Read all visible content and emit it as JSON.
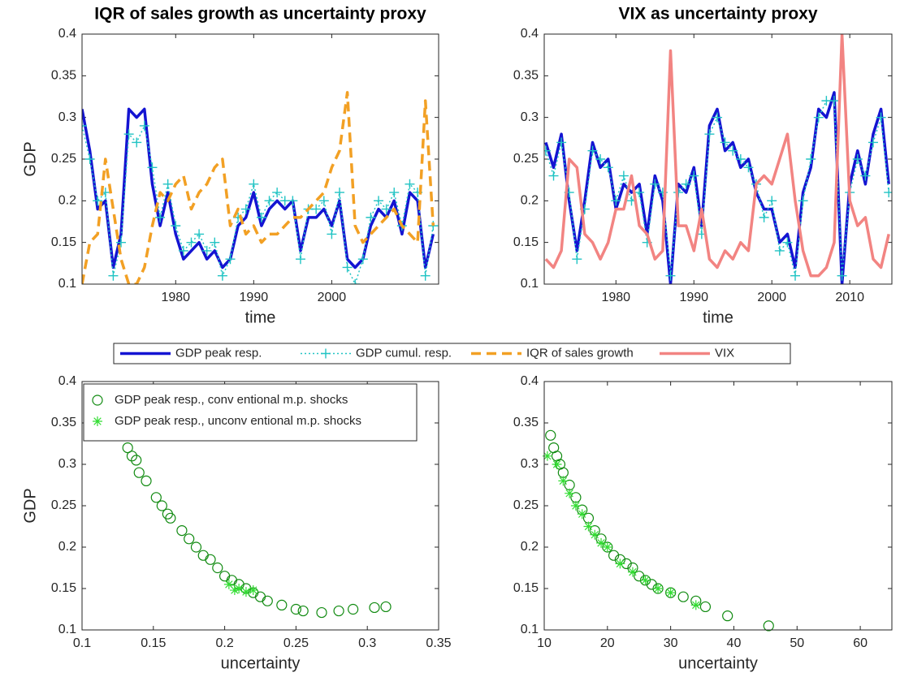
{
  "chart_data": [
    {
      "type": "line",
      "title": "IQR of sales growth  as uncertainty proxy",
      "xlabel": "time",
      "ylabel": "GDP",
      "x": [
        1968,
        1969,
        1970,
        1971,
        1972,
        1973,
        1974,
        1975,
        1976,
        1977,
        1978,
        1979,
        1980,
        1981,
        1982,
        1983,
        1984,
        1985,
        1986,
        1987,
        1988,
        1989,
        1990,
        1991,
        1992,
        1993,
        1994,
        1995,
        1996,
        1997,
        1998,
        1999,
        2000,
        2001,
        2002,
        2003,
        2004,
        2005,
        2006,
        2007,
        2008,
        2009,
        2010,
        2011,
        2012,
        2013
      ],
      "xlim": [
        1968,
        2013.7
      ],
      "xticks": [
        1980,
        1990,
        2000
      ],
      "ylim": [
        0.1,
        0.4
      ],
      "yticks": [
        0.1,
        0.15,
        0.2,
        0.25,
        0.3,
        0.35,
        0.4
      ],
      "series": [
        {
          "name": "GDP peak resp.",
          "color": "#1414d2",
          "style": "solid",
          "width": 3.5,
          "values": [
            0.31,
            0.26,
            0.19,
            0.2,
            0.12,
            0.16,
            0.31,
            0.3,
            0.31,
            0.22,
            0.17,
            0.21,
            0.16,
            0.13,
            0.14,
            0.15,
            0.13,
            0.14,
            0.12,
            0.13,
            0.17,
            0.18,
            0.21,
            0.17,
            0.19,
            0.2,
            0.19,
            0.2,
            0.14,
            0.18,
            0.18,
            0.19,
            0.17,
            0.2,
            0.13,
            0.12,
            0.13,
            0.17,
            0.19,
            0.18,
            0.2,
            0.16,
            0.21,
            0.2,
            0.12,
            0.16
          ]
        },
        {
          "name": "GDP cumul. resp.",
          "color": "#22c4c4",
          "style": "dotted",
          "marker": "+",
          "width": 1.5,
          "values": [
            0.29,
            0.25,
            0.2,
            0.21,
            0.11,
            0.15,
            0.28,
            0.27,
            0.29,
            0.24,
            0.18,
            0.22,
            0.17,
            0.14,
            0.15,
            0.16,
            0.14,
            0.15,
            0.11,
            0.13,
            0.18,
            0.19,
            0.22,
            0.18,
            0.2,
            0.21,
            0.2,
            0.2,
            0.13,
            0.19,
            0.19,
            0.2,
            0.16,
            0.21,
            0.12,
            0.1,
            0.13,
            0.18,
            0.2,
            0.19,
            0.21,
            0.17,
            0.22,
            0.21,
            0.11,
            0.17
          ]
        },
        {
          "name": "IQR of sales growth",
          "color": "#f2a024",
          "style": "dashed",
          "width": 3.5,
          "values": [
            0.1,
            0.15,
            0.16,
            0.25,
            0.19,
            0.13,
            0.1,
            0.1,
            0.12,
            0.17,
            0.21,
            0.2,
            0.22,
            0.23,
            0.19,
            0.21,
            0.22,
            0.24,
            0.25,
            0.17,
            0.19,
            0.16,
            0.17,
            0.15,
            0.16,
            0.16,
            0.17,
            0.18,
            0.18,
            0.19,
            0.2,
            0.21,
            0.24,
            0.26,
            0.33,
            0.17,
            0.15,
            0.16,
            0.17,
            0.18,
            0.19,
            0.17,
            0.16,
            0.15,
            0.32,
            0.17
          ]
        }
      ]
    },
    {
      "type": "line",
      "title": "VIX as uncertainty proxy",
      "xlabel": "time",
      "x": [
        1971,
        1972,
        1973,
        1974,
        1975,
        1976,
        1977,
        1978,
        1979,
        1980,
        1981,
        1982,
        1983,
        1984,
        1985,
        1986,
        1987,
        1988,
        1989,
        1990,
        1991,
        1992,
        1993,
        1994,
        1995,
        1996,
        1997,
        1998,
        1999,
        2000,
        2001,
        2002,
        2003,
        2004,
        2005,
        2006,
        2007,
        2008,
        2009,
        2010,
        2011,
        2012,
        2013,
        2014,
        2015
      ],
      "xlim": [
        1970.8,
        2015.4
      ],
      "xticks": [
        1980,
        1990,
        2000,
        2010
      ],
      "ylim": [
        0.1,
        0.4
      ],
      "yticks": [
        0.1,
        0.15,
        0.2,
        0.25,
        0.3,
        0.35,
        0.4
      ],
      "series": [
        {
          "name": "GDP peak resp.",
          "color": "#1414d2",
          "style": "solid",
          "width": 3.5,
          "values": [
            0.27,
            0.24,
            0.28,
            0.2,
            0.14,
            0.2,
            0.27,
            0.24,
            0.25,
            0.19,
            0.22,
            0.21,
            0.22,
            0.16,
            0.23,
            0.2,
            0.1,
            0.22,
            0.21,
            0.24,
            0.17,
            0.29,
            0.31,
            0.26,
            0.27,
            0.24,
            0.25,
            0.21,
            0.19,
            0.19,
            0.15,
            0.16,
            0.12,
            0.21,
            0.24,
            0.31,
            0.3,
            0.33,
            0.1,
            0.22,
            0.26,
            0.22,
            0.28,
            0.31,
            0.22
          ]
        },
        {
          "name": "GDP cumul. resp.",
          "color": "#22c4c4",
          "style": "dotted",
          "marker": "+",
          "width": 1.5,
          "values": [
            0.26,
            0.23,
            0.27,
            0.21,
            0.13,
            0.19,
            0.26,
            0.25,
            0.24,
            0.2,
            0.23,
            0.2,
            0.21,
            0.15,
            0.22,
            0.21,
            0.11,
            0.21,
            0.22,
            0.23,
            0.16,
            0.28,
            0.3,
            0.27,
            0.26,
            0.25,
            0.24,
            0.22,
            0.18,
            0.2,
            0.14,
            0.15,
            0.11,
            0.2,
            0.25,
            0.3,
            0.32,
            0.32,
            0.11,
            0.21,
            0.25,
            0.23,
            0.27,
            0.3,
            0.21
          ]
        },
        {
          "name": "VIX",
          "color": "#f28482",
          "style": "solid",
          "width": 3.5,
          "values": [
            0.13,
            0.12,
            0.14,
            0.25,
            0.24,
            0.16,
            0.15,
            0.13,
            0.15,
            0.19,
            0.19,
            0.23,
            0.17,
            0.16,
            0.13,
            0.14,
            0.38,
            0.17,
            0.17,
            0.14,
            0.19,
            0.13,
            0.12,
            0.14,
            0.13,
            0.15,
            0.14,
            0.22,
            0.23,
            0.22,
            0.25,
            0.28,
            0.2,
            0.14,
            0.11,
            0.11,
            0.12,
            0.15,
            0.4,
            0.2,
            0.17,
            0.18,
            0.13,
            0.12,
            0.16
          ]
        }
      ]
    },
    {
      "type": "scatter",
      "xlabel": "uncertainty",
      "ylabel": "GDP",
      "legend": "upper left",
      "xlim": [
        0.1,
        0.35
      ],
      "xticks": [
        0.1,
        0.15,
        0.2,
        0.25,
        0.3,
        0.35
      ],
      "ylim": [
        0.1,
        0.4
      ],
      "yticks": [
        0.1,
        0.15,
        0.2,
        0.25,
        0.3,
        0.35,
        0.4
      ],
      "series": [
        {
          "name": "GDP peak resp., conv entional m.p. shocks",
          "color": "#108a10",
          "marker": "o",
          "x": [
            0.132,
            0.135,
            0.138,
            0.14,
            0.145,
            0.152,
            0.156,
            0.16,
            0.162,
            0.17,
            0.175,
            0.18,
            0.185,
            0.19,
            0.195,
            0.2,
            0.205,
            0.21,
            0.215,
            0.22,
            0.225,
            0.23,
            0.24,
            0.25,
            0.255,
            0.268,
            0.28,
            0.29,
            0.305,
            0.313
          ],
          "y": [
            0.32,
            0.31,
            0.305,
            0.29,
            0.28,
            0.26,
            0.25,
            0.24,
            0.235,
            0.22,
            0.21,
            0.2,
            0.19,
            0.185,
            0.175,
            0.165,
            0.16,
            0.155,
            0.15,
            0.145,
            0.14,
            0.135,
            0.13,
            0.125,
            0.123,
            0.121,
            0.123,
            0.125,
            0.127,
            0.128
          ]
        },
        {
          "name": "GDP peak resp., unconv entional m.p. shocks",
          "color": "#33dd33",
          "marker": "*",
          "x": [
            0.203,
            0.207,
            0.21,
            0.215,
            0.22
          ],
          "y": [
            0.155,
            0.148,
            0.15,
            0.146,
            0.148
          ]
        }
      ]
    },
    {
      "type": "scatter",
      "xlabel": "uncertainty",
      "xlim": [
        10,
        65
      ],
      "xticks": [
        10,
        20,
        30,
        40,
        50,
        60
      ],
      "ylim": [
        0.1,
        0.4
      ],
      "yticks": [
        0.1,
        0.15,
        0.2,
        0.25,
        0.3,
        0.35,
        0.4
      ],
      "series": [
        {
          "color": "#108a10",
          "marker": "o",
          "x": [
            11,
            11.5,
            12,
            12.5,
            13,
            14,
            15,
            16,
            17,
            18,
            19,
            20,
            21,
            22,
            23,
            24,
            25,
            26,
            27,
            28,
            30,
            32,
            34,
            35.5,
            39,
            45.5
          ],
          "y": [
            0.335,
            0.32,
            0.31,
            0.3,
            0.29,
            0.275,
            0.26,
            0.245,
            0.235,
            0.22,
            0.21,
            0.2,
            0.19,
            0.185,
            0.18,
            0.175,
            0.165,
            0.16,
            0.155,
            0.15,
            0.145,
            0.14,
            0.135,
            0.128,
            0.117,
            0.105
          ]
        },
        {
          "color": "#33dd33",
          "marker": "*",
          "x": [
            10.5,
            12,
            13,
            14,
            15,
            16,
            17,
            18,
            19,
            20,
            22,
            24,
            26,
            28,
            30,
            34
          ],
          "y": [
            0.31,
            0.3,
            0.28,
            0.265,
            0.25,
            0.24,
            0.225,
            0.215,
            0.205,
            0.2,
            0.18,
            0.17,
            0.16,
            0.15,
            0.145,
            0.13
          ]
        }
      ]
    }
  ]
}
